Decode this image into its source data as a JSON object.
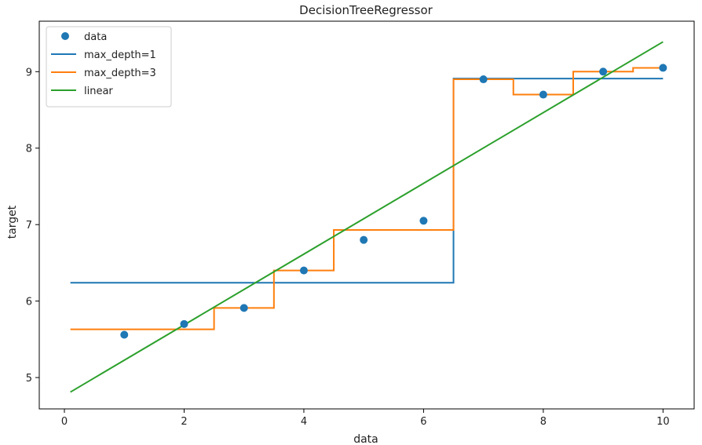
{
  "chart_data": {
    "type": "line",
    "title": "DecisionTreeRegressor",
    "xlabel": "data",
    "ylabel": "target",
    "xlim": [
      -0.42,
      10.52
    ],
    "ylim": [
      4.59,
      9.66
    ],
    "xticks": [
      0,
      2,
      4,
      6,
      8,
      10
    ],
    "yticks": [
      5,
      6,
      7,
      8,
      9
    ],
    "grid": false,
    "legend_position": "top-left",
    "scatter": {
      "name": "data",
      "color": "#1f77b4",
      "x": [
        1,
        2,
        3,
        4,
        5,
        6,
        7,
        8,
        9,
        10
      ],
      "y": [
        5.56,
        5.7,
        5.91,
        6.4,
        6.8,
        7.05,
        8.9,
        8.7,
        9.0,
        9.05
      ]
    },
    "series": [
      {
        "name": "max_depth=1",
        "color": "#1f77b4",
        "x": [
          0.1,
          6.5,
          6.5,
          10.0
        ],
        "y": [
          6.24,
          6.24,
          8.91,
          8.91
        ]
      },
      {
        "name": "max_depth=3",
        "color": "#ff7f0e",
        "x": [
          0.1,
          2.5,
          2.5,
          3.5,
          3.5,
          4.5,
          4.5,
          6.5,
          6.5,
          7.5,
          7.5,
          8.5,
          8.5,
          9.5,
          9.5,
          10.0
        ],
        "y": [
          5.63,
          5.63,
          5.91,
          5.91,
          6.4,
          6.4,
          6.93,
          6.93,
          8.9,
          8.9,
          8.7,
          8.7,
          9.0,
          9.0,
          9.05,
          9.05
        ]
      },
      {
        "name": "linear",
        "color": "#2ca02c",
        "x": [
          0.1,
          10.0
        ],
        "y": [
          4.81,
          9.39
        ]
      }
    ]
  }
}
